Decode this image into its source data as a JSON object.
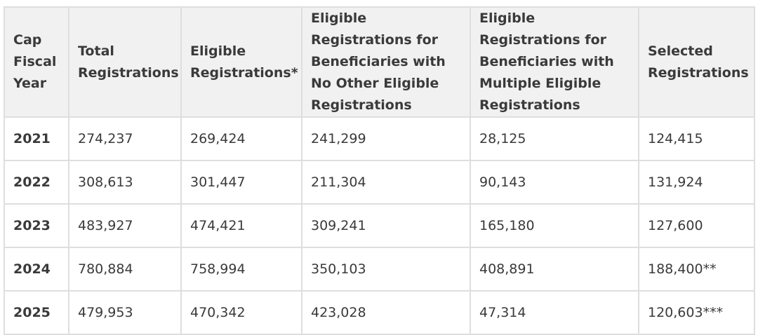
{
  "table": {
    "headers": [
      "Cap Fiscal Year",
      "Total Registrations",
      "Eligible Registrations*",
      "Eligible Registrations for Beneficiaries with No Other Eligible Registrations",
      "Eligible Registrations for Beneficiaries with Multiple Eligible Registrations",
      "Selected Registrations"
    ],
    "rows": [
      [
        "2021",
        "274,237",
        "269,424",
        "241,299",
        "28,125",
        "124,415"
      ],
      [
        "2022",
        "308,613",
        "301,447",
        "211,304",
        "90,143",
        "131,924"
      ],
      [
        "2023",
        "483,927",
        "474,421",
        "309,241",
        "165,180",
        "127,600"
      ],
      [
        "2024",
        "780,884",
        "758,994",
        "350,103",
        "408,891",
        "188,400**"
      ],
      [
        "2025",
        "479,953",
        "470,342",
        "423,028",
        "47,314",
        "120,603***"
      ]
    ]
  },
  "colors": {
    "header_bg": "#f1f1f1",
    "border": "#dedede",
    "text": "#3a3a3a"
  }
}
